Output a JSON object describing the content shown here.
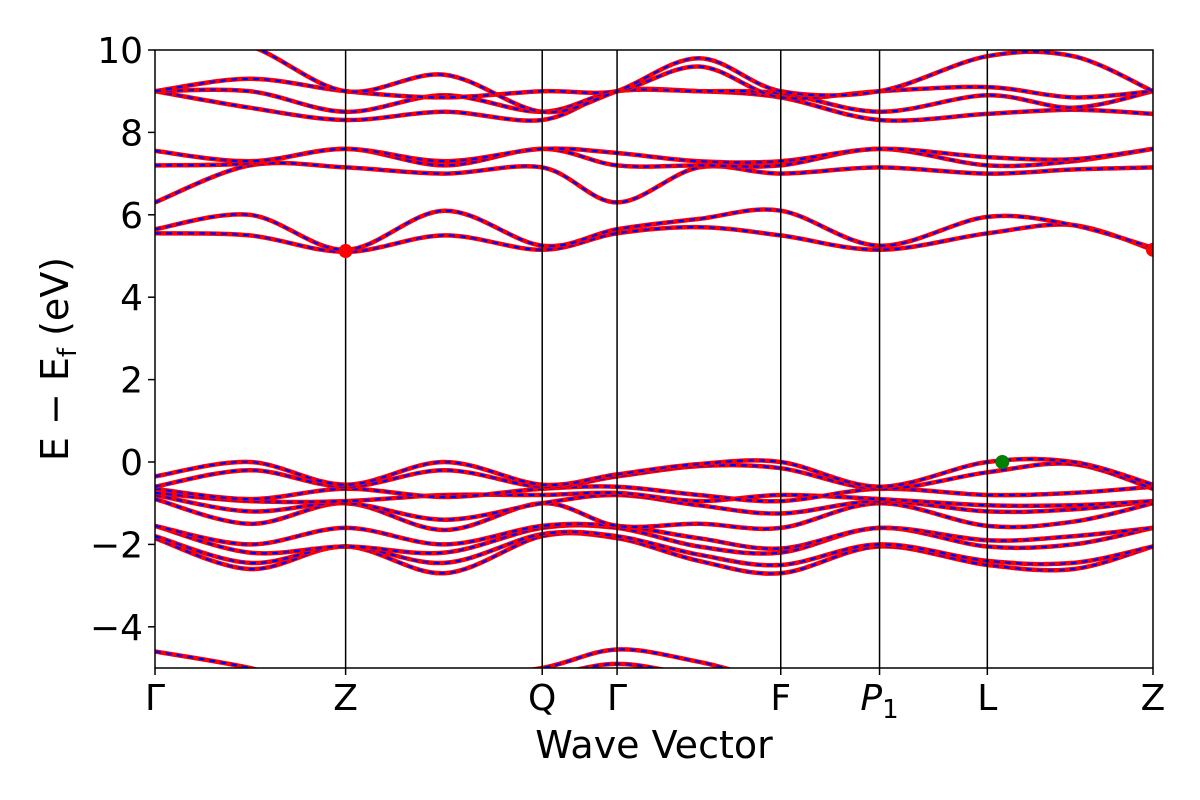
{
  "chart_data": {
    "type": "line",
    "xlabel": "Wave Vector",
    "ylabel_parts": {
      "main": "E − E",
      "sub": "f",
      "unit": " (eV)"
    },
    "ylim": [
      -5,
      10
    ],
    "yticks": [
      -4,
      -2,
      0,
      2,
      4,
      6,
      8,
      10
    ],
    "ytick_labels": [
      "−4",
      "−2",
      "0",
      "2",
      "4",
      "6",
      "8",
      "10"
    ],
    "xlim": [
      0,
      1
    ],
    "kpoints": [
      {
        "label": "Γ",
        "x": 0.0
      },
      {
        "label": "Z",
        "x": 0.191
      },
      {
        "label": "Q",
        "x": 0.388
      },
      {
        "label": "Γ",
        "x": 0.463
      },
      {
        "label": "F",
        "x": 0.627
      },
      {
        "label": "P",
        "sub": "1",
        "x": 0.726
      },
      {
        "label": "L",
        "x": 0.834
      },
      {
        "label": "Z",
        "x": 1.0
      }
    ],
    "series_colors": {
      "dft": "#ff0000",
      "fit": "#0000ff"
    },
    "band_nodes_x": [
      0.0,
      0.095,
      0.191,
      0.29,
      0.388,
      0.463,
      0.545,
      0.627,
      0.726,
      0.834,
      0.92,
      1.0
    ],
    "bands": [
      [
        -5.3,
        -5.5,
        -5.6,
        -5.4,
        -5.2,
        -4.9,
        -5.2,
        -5.5,
        -5.4,
        -5.3,
        -5.2,
        -5.4
      ],
      [
        -4.6,
        -5.0,
        -5.6,
        -5.3,
        -5.0,
        -4.55,
        -4.85,
        -5.3,
        -5.3,
        -5.2,
        -5.1,
        -5.3
      ],
      [
        -1.85,
        -2.6,
        -2.05,
        -2.7,
        -1.8,
        -1.85,
        -2.4,
        -2.7,
        -2.05,
        -2.5,
        -2.6,
        -2.05
      ],
      [
        -1.8,
        -2.45,
        -2.05,
        -2.45,
        -1.75,
        -1.8,
        -2.25,
        -2.5,
        -2.0,
        -2.4,
        -2.45,
        -2.05
      ],
      [
        -1.55,
        -2.2,
        -2.05,
        -2.2,
        -1.6,
        -1.6,
        -2.05,
        -2.2,
        -1.6,
        -2.05,
        -2.0,
        -1.6
      ],
      [
        -1.55,
        -2.0,
        -1.6,
        -2.0,
        -1.55,
        -1.55,
        -1.85,
        -2.1,
        -1.6,
        -1.9,
        -1.8,
        -1.6
      ],
      [
        -0.9,
        -1.5,
        -1.0,
        -1.65,
        -1.0,
        -1.55,
        -1.5,
        -1.6,
        -1.0,
        -1.55,
        -1.45,
        -1.0
      ],
      [
        -0.8,
        -1.2,
        -1.0,
        -1.4,
        -1.0,
        -0.8,
        -1.05,
        -1.25,
        -0.95,
        -1.2,
        -1.15,
        -0.95
      ],
      [
        -0.75,
        -0.95,
        -0.95,
        -0.8,
        -0.8,
        -0.75,
        -0.95,
        -0.8,
        -0.9,
        -1.05,
        -1.05,
        -0.95
      ],
      [
        -0.65,
        -0.9,
        -0.65,
        -0.85,
        -0.65,
        -0.6,
        -0.8,
        -0.95,
        -0.65,
        -0.8,
        -0.75,
        -0.6
      ],
      [
        -0.6,
        -0.2,
        -0.6,
        -0.2,
        -0.6,
        -0.35,
        -0.1,
        -0.15,
        -0.65,
        -0.25,
        -0.05,
        -0.65
      ],
      [
        -0.35,
        0.0,
        -0.55,
        0.0,
        -0.55,
        -0.3,
        -0.05,
        0.0,
        -0.6,
        0.0,
        0.0,
        -0.55
      ],
      [
        5.55,
        5.5,
        5.1,
        5.5,
        5.15,
        5.55,
        5.7,
        5.5,
        5.15,
        5.55,
        5.75,
        5.15
      ],
      [
        5.65,
        6.0,
        5.15,
        6.1,
        5.25,
        5.65,
        5.9,
        6.1,
        5.25,
        5.95,
        5.75,
        5.2
      ],
      [
        6.3,
        7.2,
        7.15,
        7.0,
        7.15,
        6.3,
        7.15,
        7.0,
        7.15,
        7.0,
        7.1,
        7.15
      ],
      [
        7.2,
        7.25,
        7.6,
        7.2,
        7.6,
        7.2,
        7.2,
        7.2,
        7.6,
        7.2,
        7.3,
        7.6
      ],
      [
        7.55,
        7.3,
        7.6,
        7.3,
        7.6,
        7.5,
        7.3,
        7.3,
        7.6,
        7.4,
        7.35,
        7.6
      ],
      [
        9.0,
        8.6,
        8.3,
        8.5,
        8.3,
        9.0,
        9.0,
        8.85,
        8.3,
        8.45,
        8.55,
        8.45
      ],
      [
        9.0,
        9.0,
        8.5,
        8.9,
        8.5,
        9.0,
        9.0,
        8.95,
        8.5,
        8.9,
        8.6,
        9.0
      ],
      [
        9.0,
        9.3,
        9.0,
        8.85,
        9.0,
        9.0,
        9.6,
        8.85,
        9.0,
        9.1,
        8.85,
        9.0
      ],
      [
        10.5,
        10.1,
        9.0,
        9.4,
        8.5,
        9.0,
        9.8,
        9.0,
        9.0,
        9.85,
        9.85,
        9.0
      ]
    ],
    "markers": [
      {
        "x": 0.191,
        "y": 5.12,
        "color": "#ff0000"
      },
      {
        "x": 1.0,
        "y": 5.15,
        "color": "#ff0000"
      },
      {
        "x": 0.849,
        "y": 0.0,
        "color": "#008000"
      }
    ]
  }
}
